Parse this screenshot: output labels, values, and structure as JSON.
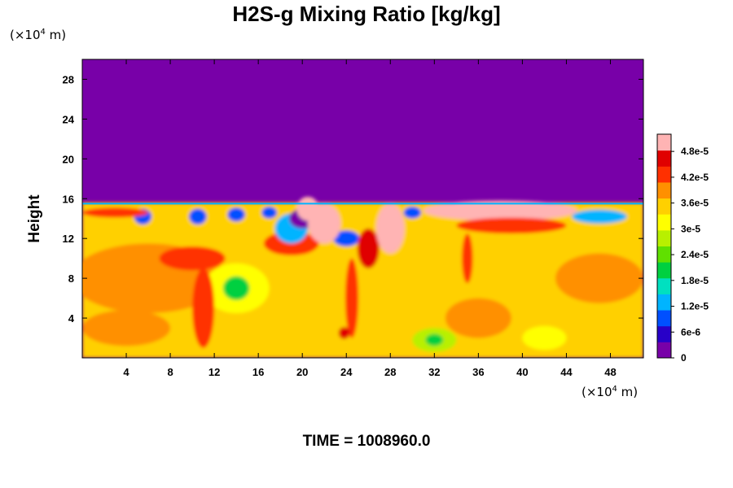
{
  "chart_data": {
    "type": "heatmap",
    "title": "H2S-g Mixing Ratio [kg/kg]",
    "ylabel": "Height",
    "x_unit": {
      "prefix": "(×10",
      "exp": "4",
      "suffix": " m)"
    },
    "y_unit": {
      "prefix": "(×10",
      "exp": "4",
      "suffix": " m)"
    },
    "xlim": [
      0,
      51
    ],
    "ylim": [
      0,
      30
    ],
    "x_ticks": [
      4,
      8,
      12,
      16,
      20,
      24,
      28,
      32,
      36,
      40,
      44,
      48
    ],
    "y_ticks": [
      4,
      8,
      12,
      16,
      20,
      24,
      28
    ],
    "colorbar": {
      "min": 0,
      "max": 5.2e-05,
      "ticks": [
        {
          "value": 0,
          "label": "0"
        },
        {
          "value": 6e-06,
          "label": "6e-6"
        },
        {
          "value": 1.2e-05,
          "label": "1.2e-5"
        },
        {
          "value": 1.8e-05,
          "label": "1.8e-5"
        },
        {
          "value": 2.4e-05,
          "label": "2.4e-5"
        },
        {
          "value": 3e-05,
          "label": "3e-5"
        },
        {
          "value": 3.6e-05,
          "label": "3.6e-5"
        },
        {
          "value": 4.2e-05,
          "label": "4.2e-5"
        },
        {
          "value": 4.8e-05,
          "label": "4.8e-5"
        }
      ],
      "colors": [
        "#7800a8",
        "#2800c8",
        "#0050ff",
        "#00b4ff",
        "#00e0c0",
        "#00d040",
        "#60e000",
        "#b8f000",
        "#ffff00",
        "#ffd000",
        "#ff9000",
        "#ff3000",
        "#e00000",
        "#ffb4b4"
      ]
    },
    "field": {
      "upper_value": 0,
      "interface_height": 15.5,
      "background_value": 3.4e-05,
      "regions": [
        {
          "kind": "rect",
          "x": [
            0,
            51
          ],
          "y": [
            0,
            15.6
          ],
          "value": 3.4e-05
        },
        {
          "kind": "ellipse",
          "cx": 6,
          "cy": 8,
          "rx": 7,
          "ry": 3.5,
          "value": 3.8e-05
        },
        {
          "kind": "ellipse",
          "cx": 4,
          "cy": 3,
          "rx": 4,
          "ry": 1.8,
          "value": 3.8e-05
        },
        {
          "kind": "ellipse",
          "cx": 47,
          "cy": 8,
          "rx": 4,
          "ry": 2.5,
          "value": 3.8e-05
        },
        {
          "kind": "ellipse",
          "cx": 36,
          "cy": 4,
          "rx": 3,
          "ry": 2,
          "value": 3.8e-05
        },
        {
          "kind": "ellipse",
          "cx": 14,
          "cy": 7,
          "rx": 3,
          "ry": 2.5,
          "value": 3e-05
        },
        {
          "kind": "ellipse",
          "cx": 14,
          "cy": 7,
          "rx": 1.2,
          "ry": 1.2,
          "value": 2e-05
        },
        {
          "kind": "ellipse",
          "cx": 32,
          "cy": 1.8,
          "rx": 2,
          "ry": 1.2,
          "value": 2.8e-05
        },
        {
          "kind": "ellipse",
          "cx": 32,
          "cy": 1.8,
          "rx": 0.8,
          "ry": 0.6,
          "value": 2e-05
        },
        {
          "kind": "ellipse",
          "cx": 42,
          "cy": 2,
          "rx": 2,
          "ry": 1.2,
          "value": 3e-05
        },
        {
          "kind": "ellipse",
          "cx": 10,
          "cy": 10,
          "rx": 3,
          "ry": 1.2,
          "value": 4.4e-05
        },
        {
          "kind": "ellipse",
          "cx": 11,
          "cy": 5,
          "rx": 1,
          "ry": 4,
          "value": 4.4e-05
        },
        {
          "kind": "ellipse",
          "cx": 19,
          "cy": 11.5,
          "rx": 2.5,
          "ry": 1.2,
          "value": 4.4e-05
        },
        {
          "kind": "ellipse",
          "cx": 19,
          "cy": 13,
          "rx": 1.5,
          "ry": 1.5,
          "value": 1.2e-05
        },
        {
          "kind": "ellipse",
          "cx": 20,
          "cy": 14,
          "rx": 1.2,
          "ry": 1,
          "value": 3e-06
        },
        {
          "kind": "ellipse",
          "cx": 24,
          "cy": 12,
          "rx": 1.2,
          "ry": 0.8,
          "value": 8e-06
        },
        {
          "kind": "ellipse",
          "cx": 26,
          "cy": 11,
          "rx": 1,
          "ry": 2,
          "value": 4.6e-05
        },
        {
          "kind": "ellipse",
          "cx": 24.5,
          "cy": 6,
          "rx": 0.6,
          "ry": 4,
          "value": 4.4e-05
        },
        {
          "kind": "ellipse",
          "cx": 23.8,
          "cy": 2.5,
          "rx": 0.5,
          "ry": 0.6,
          "value": 4.8e-05
        },
        {
          "kind": "ellipse",
          "cx": 35,
          "cy": 10,
          "rx": 0.5,
          "ry": 2.5,
          "value": 4.4e-05
        },
        {
          "kind": "ellipse",
          "cx": 22,
          "cy": 13.5,
          "rx": 1.5,
          "ry": 2,
          "value": 5.2e-05
        },
        {
          "kind": "ellipse",
          "cx": 28,
          "cy": 13,
          "rx": 1.3,
          "ry": 2.5,
          "value": 5.2e-05
        },
        {
          "kind": "ellipse",
          "cx": 20.5,
          "cy": 15,
          "rx": 1,
          "ry": 1.2,
          "value": 5.2e-05
        },
        {
          "kind": "ellipse",
          "cx": 38,
          "cy": 14.8,
          "rx": 7,
          "ry": 1,
          "value": 5.2e-05
        },
        {
          "kind": "ellipse",
          "cx": 39,
          "cy": 13.3,
          "rx": 5,
          "ry": 0.8,
          "value": 4.4e-05
        },
        {
          "kind": "ellipse",
          "cx": 47,
          "cy": 14.2,
          "rx": 2.5,
          "ry": 0.7,
          "value": 1.2e-05
        },
        {
          "kind": "ellipse",
          "cx": 5.5,
          "cy": 14.2,
          "rx": 0.8,
          "ry": 0.8,
          "value": 8e-06
        },
        {
          "kind": "ellipse",
          "cx": 10.5,
          "cy": 14.2,
          "rx": 0.8,
          "ry": 0.8,
          "value": 8e-06
        },
        {
          "kind": "ellipse",
          "cx": 14,
          "cy": 14.4,
          "rx": 0.8,
          "ry": 0.7,
          "value": 8e-06
        },
        {
          "kind": "ellipse",
          "cx": 17,
          "cy": 14.6,
          "rx": 0.7,
          "ry": 0.6,
          "value": 8e-06
        },
        {
          "kind": "ellipse",
          "cx": 30,
          "cy": 14.6,
          "rx": 0.8,
          "ry": 0.6,
          "value": 8e-06
        },
        {
          "kind": "ellipse",
          "cx": 3,
          "cy": 14.6,
          "rx": 3,
          "ry": 0.5,
          "value": 4.4e-05
        }
      ]
    },
    "time_label": "TIME = 1008960.0"
  }
}
